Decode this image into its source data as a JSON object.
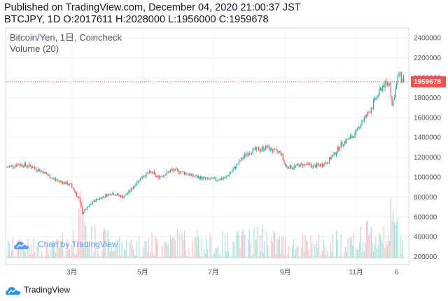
{
  "header": {
    "line1": "Published on TradingView.com, December 04, 2020 21:00:37 JST",
    "line2": "BTCJPY, 1D O:2017611 H:2028000 L:1956000 C:1959678"
  },
  "legend": {
    "symbol": "Bitcoin/Yen, 1日, Coincheck",
    "volume": "Volume (20)"
  },
  "watermark": "Chart by TradingView",
  "footer": {
    "brand": "TradingView"
  },
  "colors": {
    "up": "#26a69a",
    "down": "#ef5350",
    "vol_up": "#a8e0d8",
    "vol_down": "#f7c1c6",
    "price_label": "#ef5350"
  },
  "icons": {
    "watermark": "tradingview-cloud-icon",
    "footer": "tradingview-cloud-icon"
  },
  "chart_data": {
    "type": "candlestick",
    "symbol": "BTCJPY",
    "timeframe": "1D",
    "last_price": 1959678,
    "last_price_label": "1959678",
    "ohlc_last": {
      "open": 2017611,
      "high": 2028000,
      "low": 1956000,
      "close": 1959678
    },
    "y_ticks": [
      "2400000",
      "2200000",
      "2000000",
      "1800000",
      "1600000",
      "1400000",
      "1200000",
      "1000000",
      "800000",
      "600000",
      "400000",
      "200000"
    ],
    "y_tick_values": [
      2400000,
      2200000,
      2000000,
      1800000,
      1600000,
      1400000,
      1200000,
      1000000,
      800000,
      600000,
      400000,
      200000
    ],
    "ylim": [
      120000,
      2500000
    ],
    "x_ticks": [
      {
        "label": "3月",
        "day": 56
      },
      {
        "label": "5月",
        "day": 117
      },
      {
        "label": "7月",
        "day": 178
      },
      {
        "label": "9月",
        "day": 240
      },
      {
        "label": "11月",
        "day": 301
      },
      {
        "label": "6",
        "day": 336
      }
    ],
    "x_domain_days": [
      0,
      338
    ],
    "price_path": [
      [
        0,
        1100000
      ],
      [
        10,
        1130000
      ],
      [
        20,
        1110000
      ],
      [
        30,
        1060000
      ],
      [
        40,
        980000
      ],
      [
        50,
        940000
      ],
      [
        55,
        920000
      ],
      [
        58,
        860000
      ],
      [
        62,
        780000
      ],
      [
        65,
        640000
      ],
      [
        70,
        700000
      ],
      [
        75,
        760000
      ],
      [
        82,
        800000
      ],
      [
        90,
        840000
      ],
      [
        100,
        800000
      ],
      [
        106,
        860000
      ],
      [
        112,
        950000
      ],
      [
        118,
        1020000
      ],
      [
        124,
        1050000
      ],
      [
        130,
        1000000
      ],
      [
        136,
        1030000
      ],
      [
        142,
        1070000
      ],
      [
        148,
        1060000
      ],
      [
        156,
        1030000
      ],
      [
        164,
        1000000
      ],
      [
        172,
        980000
      ],
      [
        180,
        975000
      ],
      [
        188,
        990000
      ],
      [
        194,
        1060000
      ],
      [
        200,
        1150000
      ],
      [
        206,
        1230000
      ],
      [
        212,
        1270000
      ],
      [
        218,
        1280000
      ],
      [
        224,
        1300000
      ],
      [
        230,
        1260000
      ],
      [
        236,
        1250000
      ],
      [
        240,
        1110000
      ],
      [
        246,
        1100000
      ],
      [
        252,
        1120000
      ],
      [
        258,
        1130000
      ],
      [
        264,
        1110000
      ],
      [
        270,
        1120000
      ],
      [
        276,
        1150000
      ],
      [
        282,
        1230000
      ],
      [
        288,
        1330000
      ],
      [
        294,
        1380000
      ],
      [
        300,
        1430000
      ],
      [
        306,
        1560000
      ],
      [
        312,
        1650000
      ],
      [
        318,
        1790000
      ],
      [
        324,
        1920000
      ],
      [
        330,
        1950000
      ],
      [
        332,
        1720000
      ],
      [
        335,
        1880000
      ],
      [
        338,
        2050000
      ],
      [
        340,
        1990000
      ],
      [
        342,
        1959678
      ]
    ],
    "volume_profile": [
      [
        0,
        240000
      ],
      [
        40,
        230000
      ],
      [
        56,
        300000
      ],
      [
        62,
        600000
      ],
      [
        70,
        340000
      ],
      [
        100,
        260000
      ],
      [
        150,
        310000
      ],
      [
        180,
        270000
      ],
      [
        200,
        300000
      ],
      [
        220,
        330000
      ],
      [
        240,
        280000
      ],
      [
        270,
        260000
      ],
      [
        290,
        300000
      ],
      [
        305,
        330000
      ],
      [
        320,
        380000
      ],
      [
        330,
        520000
      ],
      [
        338,
        420000
      ],
      [
        342,
        300000
      ]
    ]
  }
}
